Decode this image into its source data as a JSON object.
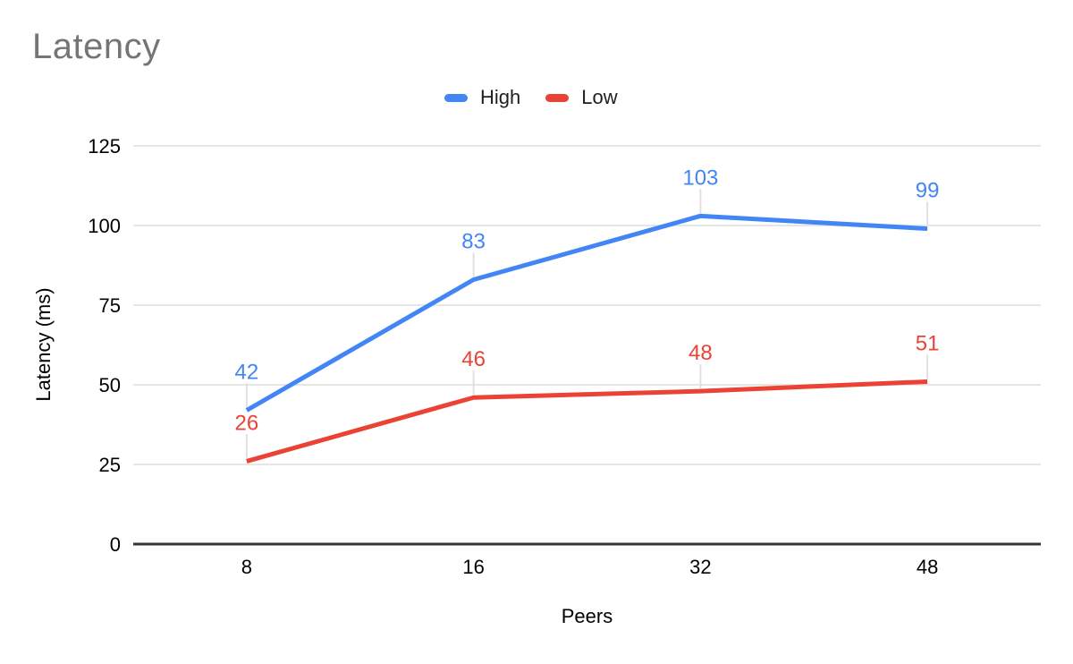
{
  "chart_data": {
    "type": "line",
    "title": "Latency",
    "xlabel": "Peers",
    "ylabel": "Latency (ms)",
    "categories": [
      "8",
      "16",
      "32",
      "48"
    ],
    "series": [
      {
        "name": "High",
        "color": "#4285F4",
        "values": [
          42,
          83,
          103,
          99
        ]
      },
      {
        "name": "Low",
        "color": "#EA4335",
        "values": [
          26,
          46,
          48,
          51
        ]
      }
    ],
    "yticks": [
      0,
      25,
      50,
      75,
      100,
      125
    ],
    "ylim": [
      0,
      125
    ],
    "grid": true,
    "legend_position": "top",
    "data_labels_shown": true,
    "style": {
      "background_color": "#ffffff",
      "title_color": "#757575",
      "gridline_color": "#e6e6e6",
      "axis_line_color": "#333333",
      "tick_label_color": "#000000",
      "leader_line_color": "#e0e0e0",
      "legend_text_color": "#1f1f1f"
    }
  }
}
